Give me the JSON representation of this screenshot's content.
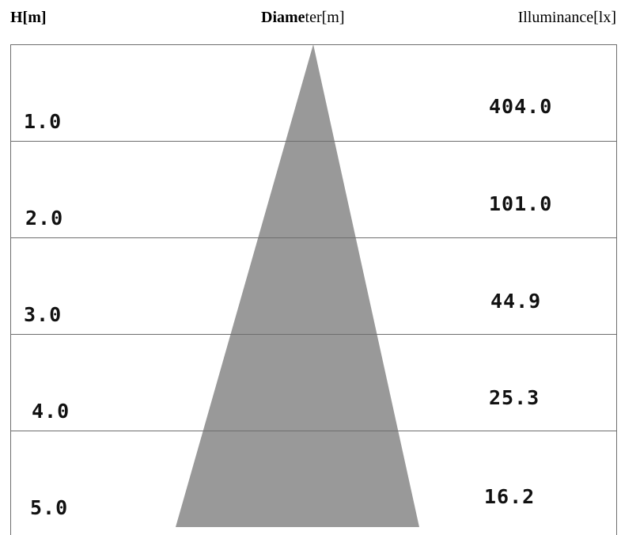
{
  "headers": {
    "height": "H[m]",
    "diameter_bold": "Diame",
    "diameter_rest": "ter[m]",
    "illuminance": "Illuminance[lx]"
  },
  "rows": [
    {
      "height": "1.0",
      "illuminance": "404.0"
    },
    {
      "height": "2.0",
      "illuminance": "101.0"
    },
    {
      "height": "3.0",
      "illuminance": "44.9"
    },
    {
      "height": "4.0",
      "illuminance": "25.3"
    },
    {
      "height": "5.0",
      "illuminance": "16.2"
    }
  ],
  "colors": {
    "cone": "#999999",
    "grid": "#6e6e6e"
  }
}
